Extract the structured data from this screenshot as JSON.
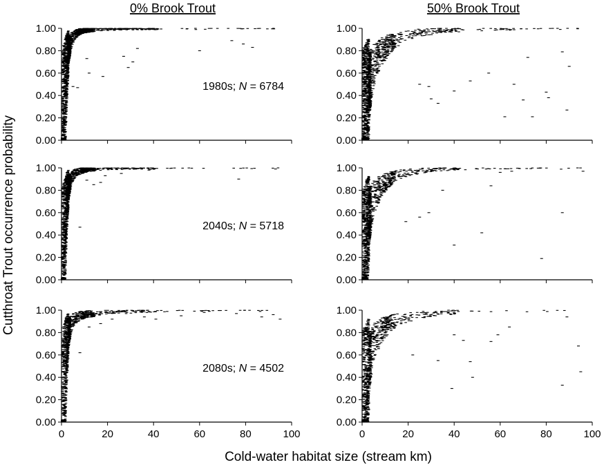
{
  "figure": {
    "x_axis_title": "Cold-water habitat size (stream km)",
    "y_axis_title": "Cutthroat Trout occurrence probability",
    "column_titles": [
      "0% Brook Trout",
      "50% Brook Trout"
    ]
  },
  "chart_data": [
    {
      "type": "scatter",
      "row": 0,
      "col": 0,
      "annotation_prefix": "1980s; ",
      "annotation_n": "N",
      "annotation_suffix": " = 6784",
      "n_points": 6784,
      "xlim": [
        0,
        100
      ],
      "ylim": [
        0,
        1
      ],
      "x_ticks": [
        "0",
        "20",
        "40",
        "60",
        "80",
        "100"
      ],
      "y_ticks": [
        "0.00",
        "0.20",
        "0.40",
        "0.60",
        "0.80",
        "1.00"
      ],
      "series": [
        {
          "x": [
            0.5,
            1,
            1.5,
            2,
            2.5,
            3,
            4,
            5,
            6,
            8,
            10,
            12,
            15,
            20,
            25,
            30,
            40,
            50,
            60,
            80,
            100
          ],
          "y": [
            0.02,
            0.15,
            0.35,
            0.55,
            0.7,
            0.8,
            0.88,
            0.92,
            0.95,
            0.97,
            0.98,
            0.985,
            0.99,
            0.995,
            0.997,
            0.998,
            0.999,
            1.0,
            1.0,
            1.0,
            1.0
          ]
        }
      ],
      "outliers": [
        [
          5,
          0.48
        ],
        [
          7,
          0.47
        ],
        [
          11,
          0.73
        ],
        [
          12,
          0.6
        ],
        [
          18,
          0.57
        ],
        [
          27,
          0.75
        ],
        [
          29,
          0.65
        ],
        [
          31,
          0.7
        ],
        [
          33,
          0.82
        ],
        [
          60,
          0.8
        ],
        [
          74,
          0.89
        ],
        [
          79,
          0.86
        ],
        [
          83,
          0.83
        ]
      ]
    },
    {
      "type": "scatter",
      "row": 0,
      "col": 1,
      "annotation_prefix": "",
      "annotation_n": "",
      "annotation_suffix": "",
      "n_points": 6784,
      "xlim": [
        0,
        100
      ],
      "ylim": [
        0,
        1
      ],
      "x_ticks": [
        "0",
        "20",
        "40",
        "60",
        "80",
        "100"
      ],
      "y_ticks": [
        "0.00",
        "0.20",
        "0.40",
        "0.60",
        "0.80",
        "1.00"
      ],
      "series": [
        {
          "x": [
            0.5,
            1,
            1.5,
            2,
            2.5,
            3,
            4,
            5,
            6,
            8,
            10,
            12,
            15,
            20,
            25,
            30,
            40,
            50,
            60,
            80,
            100
          ],
          "y": [
            0.01,
            0.08,
            0.18,
            0.3,
            0.4,
            0.48,
            0.6,
            0.66,
            0.72,
            0.78,
            0.82,
            0.86,
            0.9,
            0.94,
            0.96,
            0.97,
            0.985,
            0.99,
            0.995,
            0.999,
            1.0
          ]
        }
      ],
      "outliers": [
        [
          25,
          0.5
        ],
        [
          29,
          0.48
        ],
        [
          30,
          0.37
        ],
        [
          33,
          0.33
        ],
        [
          40,
          0.44
        ],
        [
          47,
          0.53
        ],
        [
          55,
          0.6
        ],
        [
          62,
          0.21
        ],
        [
          66,
          0.5
        ],
        [
          70,
          0.36
        ],
        [
          72,
          0.74
        ],
        [
          74,
          0.21
        ],
        [
          80,
          0.43
        ],
        [
          81,
          0.38
        ],
        [
          87,
          0.79
        ],
        [
          89,
          0.27
        ],
        [
          90,
          0.66
        ]
      ]
    },
    {
      "type": "scatter",
      "row": 1,
      "col": 0,
      "annotation_prefix": "2040s; ",
      "annotation_n": "N",
      "annotation_suffix": " = 5718",
      "n_points": 5718,
      "xlim": [
        0,
        100
      ],
      "ylim": [
        0,
        1
      ],
      "x_ticks": [
        "0",
        "20",
        "40",
        "60",
        "80",
        "100"
      ],
      "y_ticks": [
        "0.00",
        "0.20",
        "0.40",
        "0.60",
        "0.80",
        "1.00"
      ],
      "series": [
        {
          "x": [
            0.5,
            1,
            1.5,
            2,
            2.5,
            3,
            4,
            5,
            6,
            8,
            10,
            12,
            15,
            20,
            25,
            30,
            40,
            50,
            60,
            80,
            100
          ],
          "y": [
            0.02,
            0.18,
            0.4,
            0.6,
            0.74,
            0.82,
            0.9,
            0.93,
            0.95,
            0.97,
            0.98,
            0.985,
            0.99,
            0.995,
            0.997,
            0.998,
            0.999,
            1.0,
            1.0,
            1.0,
            1.0
          ]
        }
      ],
      "outliers": [
        [
          8,
          0.47
        ],
        [
          11,
          0.89
        ],
        [
          14,
          0.85
        ],
        [
          17,
          0.87
        ],
        [
          19,
          0.93
        ],
        [
          26,
          0.95
        ],
        [
          38,
          0.98
        ],
        [
          77,
          0.9
        ],
        [
          93,
          0.99
        ]
      ]
    },
    {
      "type": "scatter",
      "row": 1,
      "col": 1,
      "annotation_prefix": "",
      "annotation_n": "",
      "annotation_suffix": "",
      "n_points": 5718,
      "xlim": [
        0,
        100
      ],
      "ylim": [
        0,
        1
      ],
      "x_ticks": [
        "0",
        "20",
        "40",
        "60",
        "80",
        "100"
      ],
      "y_ticks": [
        "0.00",
        "0.20",
        "0.40",
        "0.60",
        "0.80",
        "1.00"
      ],
      "series": [
        {
          "x": [
            0.5,
            1,
            1.5,
            2,
            2.5,
            3,
            4,
            5,
            6,
            8,
            10,
            12,
            15,
            20,
            25,
            30,
            40,
            50,
            60,
            80,
            100
          ],
          "y": [
            0.01,
            0.1,
            0.22,
            0.36,
            0.47,
            0.56,
            0.66,
            0.72,
            0.77,
            0.83,
            0.87,
            0.9,
            0.93,
            0.96,
            0.975,
            0.985,
            0.995,
            0.998,
            1.0,
            1.0,
            1.0
          ]
        }
      ],
      "outliers": [
        [
          19,
          0.52
        ],
        [
          25,
          0.56
        ],
        [
          29,
          0.6
        ],
        [
          35,
          0.8
        ],
        [
          40,
          0.31
        ],
        [
          52,
          0.42
        ],
        [
          56,
          0.84
        ],
        [
          60,
          0.96
        ],
        [
          65,
          0.97
        ],
        [
          78,
          0.19
        ],
        [
          87,
          0.6
        ],
        [
          96,
          0.97
        ]
      ]
    },
    {
      "type": "scatter",
      "row": 2,
      "col": 0,
      "annotation_prefix": "2080s; ",
      "annotation_n": "N",
      "annotation_suffix": " = 4502",
      "n_points": 4502,
      "xlim": [
        0,
        100
      ],
      "ylim": [
        0,
        1
      ],
      "x_ticks": [
        "0",
        "20",
        "40",
        "60",
        "80",
        "100"
      ],
      "y_ticks": [
        "0.00",
        "0.20",
        "0.40",
        "0.60",
        "0.80",
        "1.00"
      ],
      "series": [
        {
          "x": [
            0.5,
            1,
            1.5,
            2,
            2.5,
            3,
            4,
            5,
            6,
            8,
            10,
            12,
            15,
            20,
            25,
            30,
            40,
            50,
            60,
            80,
            100
          ],
          "y": [
            0.02,
            0.16,
            0.36,
            0.56,
            0.7,
            0.79,
            0.87,
            0.91,
            0.93,
            0.95,
            0.96,
            0.965,
            0.97,
            0.98,
            0.985,
            0.99,
            0.995,
            0.998,
            1.0,
            1.0,
            1.0
          ]
        }
      ],
      "outliers": [
        [
          8,
          0.62
        ],
        [
          12,
          0.85
        ],
        [
          17,
          0.88
        ],
        [
          22,
          0.92
        ],
        [
          36,
          0.94
        ],
        [
          41,
          0.92
        ],
        [
          52,
          0.95
        ],
        [
          62,
          0.98
        ],
        [
          76,
          0.97
        ],
        [
          87,
          0.94
        ],
        [
          92,
          0.96
        ],
        [
          95,
          0.92
        ]
      ]
    },
    {
      "type": "scatter",
      "row": 2,
      "col": 1,
      "annotation_prefix": "",
      "annotation_n": "",
      "annotation_suffix": "",
      "n_points": 4502,
      "xlim": [
        0,
        100
      ],
      "ylim": [
        0,
        1
      ],
      "x_ticks": [
        "0",
        "20",
        "40",
        "60",
        "80",
        "100"
      ],
      "y_ticks": [
        "0.00",
        "0.20",
        "0.40",
        "0.60",
        "0.80",
        "1.00"
      ],
      "series": [
        {
          "x": [
            0.5,
            1,
            1.5,
            2,
            2.5,
            3,
            4,
            5,
            6,
            8,
            10,
            12,
            15,
            20,
            25,
            30,
            40,
            50,
            60,
            80,
            100
          ],
          "y": [
            0.01,
            0.1,
            0.22,
            0.35,
            0.45,
            0.53,
            0.63,
            0.7,
            0.75,
            0.81,
            0.85,
            0.88,
            0.91,
            0.94,
            0.96,
            0.97,
            0.985,
            0.99,
            0.995,
            1.0,
            1.0
          ]
        }
      ],
      "outliers": [
        [
          22,
          0.6
        ],
        [
          33,
          0.55
        ],
        [
          39,
          0.3
        ],
        [
          40,
          0.78
        ],
        [
          44,
          0.73
        ],
        [
          47,
          0.54
        ],
        [
          48,
          0.4
        ],
        [
          56,
          0.72
        ],
        [
          59,
          0.78
        ],
        [
          64,
          0.85
        ],
        [
          87,
          0.33
        ],
        [
          89,
          0.94
        ],
        [
          94,
          0.68
        ],
        [
          95,
          0.45
        ]
      ]
    }
  ]
}
